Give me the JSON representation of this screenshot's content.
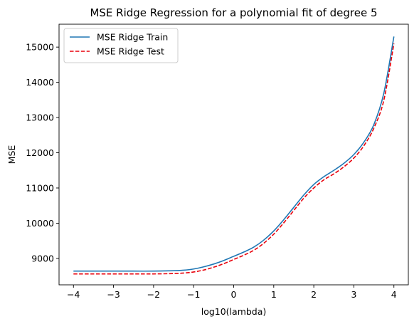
{
  "chart_data": {
    "type": "line",
    "title": "MSE Ridge Regression for a polynomial fit of degree 5",
    "xlabel": "log10(lambda)",
    "ylabel": "MSE",
    "xlim": [
      -4.36,
      4.36
    ],
    "ylim": [
      8250,
      15650
    ],
    "xticks": [
      -4,
      -3,
      -2,
      -1,
      0,
      1,
      2,
      3,
      4
    ],
    "xtick_labels": [
      "−4",
      "−3",
      "−2",
      "−1",
      "0",
      "1",
      "2",
      "3",
      "4"
    ],
    "yticks": [
      9000,
      10000,
      11000,
      12000,
      13000,
      14000,
      15000
    ],
    "ytick_labels": [
      "9000",
      "10000",
      "11000",
      "12000",
      "13000",
      "14000",
      "15000"
    ],
    "grid": false,
    "legend_position": "top-left",
    "x": [
      -4,
      -3.5,
      -3,
      -2.5,
      -2,
      -1.5,
      -1.25,
      -1,
      -0.75,
      -0.5,
      -0.25,
      0,
      0.25,
      0.5,
      0.75,
      1,
      1.25,
      1.5,
      1.75,
      2,
      2.25,
      2.5,
      2.75,
      3,
      3.25,
      3.5,
      3.75,
      4
    ],
    "series": [
      {
        "name": "MSE Ridge Train",
        "color": "#1f77b4",
        "style": "solid",
        "values": [
          8640,
          8640,
          8640,
          8640,
          8640,
          8650,
          8665,
          8700,
          8760,
          8840,
          8940,
          9060,
          9180,
          9320,
          9520,
          9780,
          10100,
          10450,
          10800,
          11100,
          11320,
          11500,
          11700,
          11950,
          12300,
          12800,
          13700,
          15300
        ]
      },
      {
        "name": "MSE Ridge Test",
        "color": "#e8000b",
        "style": "dashed",
        "values": [
          8560,
          8560,
          8560,
          8560,
          8560,
          8570,
          8585,
          8615,
          8670,
          8750,
          8850,
          8970,
          9090,
          9230,
          9430,
          9690,
          10010,
          10360,
          10710,
          11000,
          11230,
          11400,
          11600,
          11850,
          12200,
          12700,
          13500,
          15100
        ]
      }
    ]
  }
}
